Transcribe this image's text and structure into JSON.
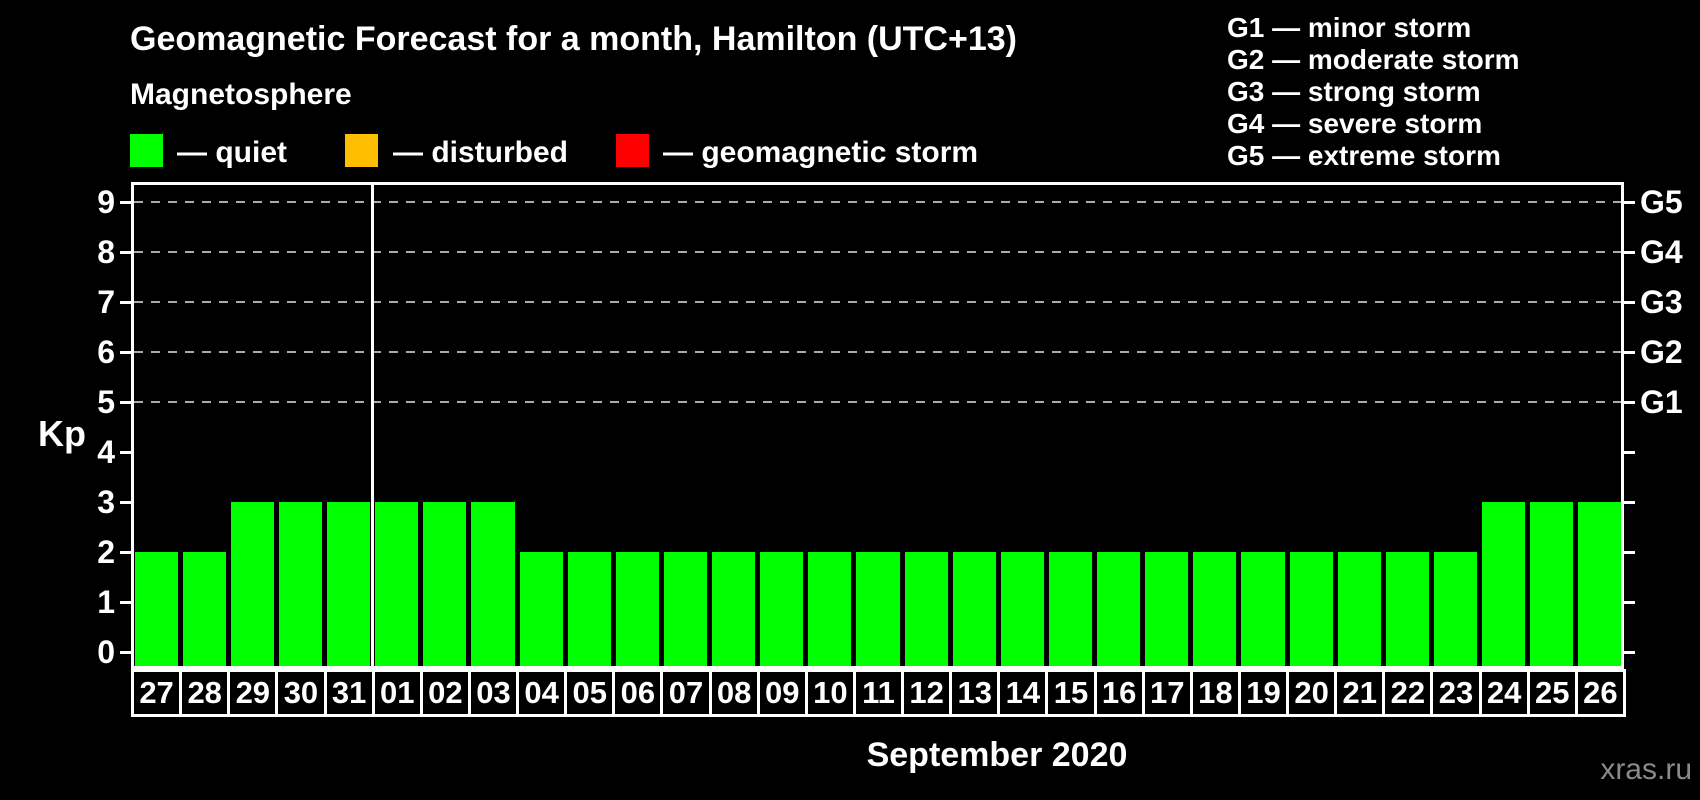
{
  "title": "Geomagnetic Forecast for a month, Hamilton (UTC+13)",
  "magnetosphere_legend": {
    "heading": "Magnetosphere",
    "items": [
      {
        "label": "— quiet",
        "color": "#00ff00"
      },
      {
        "label": "— disturbed",
        "color": "#ffbf00"
      },
      {
        "label": "— geomagnetic storm",
        "color": "#ff0000"
      }
    ]
  },
  "g_legend": [
    "G1 — minor storm",
    "G2 — moderate storm",
    "G3 — strong storm",
    "G4 — severe storm",
    "G5 — extreme storm"
  ],
  "x_axis_title": "September 2020",
  "watermark": "xras.ru",
  "colors": {
    "background": "#000000",
    "text": "#ffffff",
    "grid": "#aaaaaa",
    "bar": "#00ff00",
    "watermark": "#8a8a8a"
  },
  "chart_data": {
    "type": "bar",
    "title": "Geomagnetic Forecast for a month, Hamilton (UTC+13)",
    "categories": [
      "27",
      "28",
      "29",
      "30",
      "31",
      "01",
      "02",
      "03",
      "04",
      "05",
      "06",
      "07",
      "08",
      "09",
      "10",
      "11",
      "12",
      "13",
      "14",
      "15",
      "16",
      "17",
      "18",
      "19",
      "20",
      "21",
      "22",
      "23",
      "24",
      "25",
      "26"
    ],
    "values": [
      2,
      2,
      3,
      3,
      3,
      3,
      3,
      3,
      2,
      2,
      2,
      2,
      2,
      2,
      2,
      2,
      2,
      2,
      2,
      2,
      2,
      2,
      2,
      2,
      2,
      2,
      2,
      2,
      3,
      3,
      3
    ],
    "bar_color": "#00ff00",
    "ylabel": "Kp",
    "xlabel": "September 2020",
    "ylim": [
      0,
      9.4
    ],
    "y_ticks": [
      0,
      1,
      2,
      3,
      4,
      5,
      6,
      7,
      8,
      9
    ],
    "gridline_values": [
      5,
      6,
      7,
      8,
      9
    ],
    "right_axis": [
      {
        "label": "G1",
        "value": 5
      },
      {
        "label": "G2",
        "value": 6
      },
      {
        "label": "G3",
        "value": 7
      },
      {
        "label": "G4",
        "value": 8
      },
      {
        "label": "G5",
        "value": 9
      }
    ],
    "month_boundary_after_index": 4,
    "grid": "dashed",
    "legend_position": "top"
  }
}
